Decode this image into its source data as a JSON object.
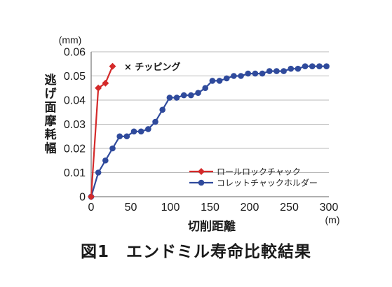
{
  "chart_data": {
    "type": "line",
    "ylabel": "逃げ面摩耗幅",
    "yunit": "(mm)",
    "xlabel": "切削距離",
    "xunit": "(m)",
    "xlim": [
      0,
      300
    ],
    "ylim": [
      0,
      0.06
    ],
    "xticks": [
      0,
      50,
      100,
      150,
      200,
      250,
      300
    ],
    "yticks": [
      "0",
      "0.01",
      "0.02",
      "0.03",
      "0.04",
      "0.05",
      "0.06"
    ],
    "grid": true,
    "legend_position": "bottom-right",
    "annotation": "× チッピング",
    "series": [
      {
        "name": "ロールロックチャック",
        "color": "#d42a2a",
        "marker": "diamond",
        "x": [
          0,
          9,
          18,
          27
        ],
        "y": [
          0,
          0.045,
          0.047,
          0.054
        ]
      },
      {
        "name": "コレットチャックホルダー",
        "color": "#2f4a9c",
        "marker": "circle",
        "x": [
          0,
          9,
          18,
          27,
          36,
          45,
          54,
          63,
          72,
          81,
          90,
          99,
          108,
          117,
          126,
          135,
          144,
          153,
          162,
          171,
          180,
          189,
          198,
          207,
          216,
          225,
          234,
          243,
          252,
          261,
          270,
          279,
          288,
          297
        ],
        "y": [
          0,
          0.01,
          0.015,
          0.02,
          0.025,
          0.025,
          0.027,
          0.027,
          0.028,
          0.031,
          0.036,
          0.041,
          0.041,
          0.042,
          0.042,
          0.043,
          0.045,
          0.048,
          0.048,
          0.049,
          0.05,
          0.05,
          0.051,
          0.051,
          0.051,
          0.052,
          0.052,
          0.052,
          0.053,
          0.053,
          0.054,
          0.054,
          0.054,
          0.054
        ]
      }
    ]
  },
  "caption": "図1　エンドミル寿命比較結果"
}
